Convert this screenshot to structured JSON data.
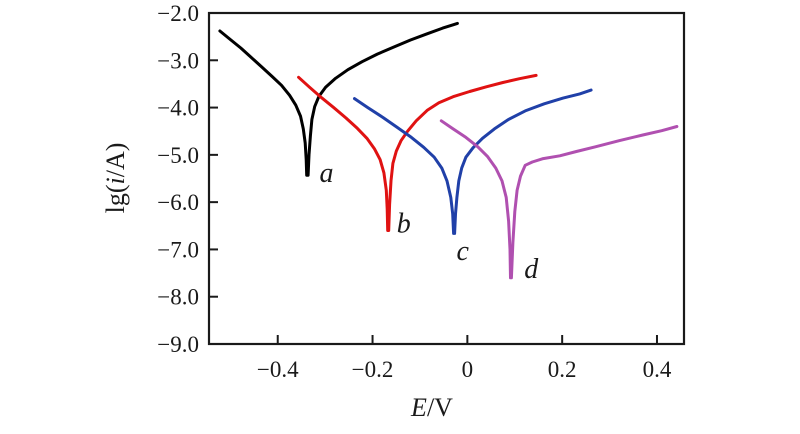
{
  "figure": {
    "background": "#ffffff",
    "frame_color": "#1a1a1a"
  },
  "chart_data": {
    "type": "line",
    "title": "",
    "xlabel_parts": [
      {
        "text": "E",
        "italic": true
      },
      {
        "text": "/V",
        "italic": false
      }
    ],
    "ylabel_parts": [
      {
        "text": "lg(",
        "italic": false
      },
      {
        "text": "i",
        "italic": true
      },
      {
        "text": "/A)",
        "italic": false
      }
    ],
    "xlim": [
      -0.545,
      0.457
    ],
    "ylim": [
      -9.0,
      -2.0
    ],
    "grid": false,
    "legend": "none",
    "xticks": [
      {
        "value": -0.4,
        "label": "−0.4"
      },
      {
        "value": -0.2,
        "label": "−0.2"
      },
      {
        "value": 0.0,
        "label": "0"
      },
      {
        "value": 0.2,
        "label": "0.2"
      },
      {
        "value": 0.4,
        "label": "0.4"
      }
    ],
    "yticks": [
      {
        "value": -2.0,
        "label": "−2.0"
      },
      {
        "value": -3.0,
        "label": "−3.0"
      },
      {
        "value": -4.0,
        "label": "−4.0"
      },
      {
        "value": -5.0,
        "label": "−5.0"
      },
      {
        "value": -6.0,
        "label": "−6.0"
      },
      {
        "value": -7.0,
        "label": "−7.0"
      },
      {
        "value": -8.0,
        "label": "−8.0"
      },
      {
        "value": -9.0,
        "label": "−9.0"
      }
    ],
    "series": [
      {
        "name": "a",
        "color": "#000000",
        "corrosion_potential_V": -0.339,
        "min_lg_i": -5.43,
        "label": "a",
        "label_pos": [
          -0.312,
          -5.57
        ],
        "points": [
          [
            -0.522,
            -2.38
          ],
          [
            -0.5,
            -2.56
          ],
          [
            -0.478,
            -2.74
          ],
          [
            -0.458,
            -2.92
          ],
          [
            -0.435,
            -3.13
          ],
          [
            -0.412,
            -3.34
          ],
          [
            -0.392,
            -3.53
          ],
          [
            -0.375,
            -3.74
          ],
          [
            -0.362,
            -3.95
          ],
          [
            -0.352,
            -4.18
          ],
          [
            -0.346,
            -4.45
          ],
          [
            -0.342,
            -4.75
          ],
          [
            -0.34,
            -5.1
          ],
          [
            -0.339,
            -5.43
          ],
          [
            -0.336,
            -5.43
          ],
          [
            -0.334,
            -5.0
          ],
          [
            -0.331,
            -4.6
          ],
          [
            -0.328,
            -4.25
          ],
          [
            -0.322,
            -3.98
          ],
          [
            -0.313,
            -3.76
          ],
          [
            -0.299,
            -3.57
          ],
          [
            -0.278,
            -3.38
          ],
          [
            -0.252,
            -3.2
          ],
          [
            -0.222,
            -3.03
          ],
          [
            -0.19,
            -2.87
          ],
          [
            -0.155,
            -2.72
          ],
          [
            -0.12,
            -2.57
          ],
          [
            -0.085,
            -2.44
          ],
          [
            -0.052,
            -2.32
          ],
          [
            -0.03,
            -2.25
          ],
          [
            -0.021,
            -2.22
          ]
        ]
      },
      {
        "name": "b",
        "color": "#e01212",
        "corrosion_potential_V": -0.168,
        "min_lg_i": -6.6,
        "label": "b",
        "label_pos": [
          -0.149,
          -6.64
        ],
        "points": [
          [
            -0.356,
            -3.36
          ],
          [
            -0.333,
            -3.57
          ],
          [
            -0.308,
            -3.79
          ],
          [
            -0.282,
            -4.0
          ],
          [
            -0.256,
            -4.22
          ],
          [
            -0.232,
            -4.44
          ],
          [
            -0.212,
            -4.65
          ],
          [
            -0.196,
            -4.87
          ],
          [
            -0.184,
            -5.1
          ],
          [
            -0.176,
            -5.38
          ],
          [
            -0.171,
            -5.75
          ],
          [
            -0.169,
            -6.15
          ],
          [
            -0.168,
            -6.6
          ],
          [
            -0.166,
            -6.6
          ],
          [
            -0.164,
            -6.05
          ],
          [
            -0.161,
            -5.55
          ],
          [
            -0.157,
            -5.18
          ],
          [
            -0.15,
            -4.92
          ],
          [
            -0.14,
            -4.7
          ],
          [
            -0.126,
            -4.5
          ],
          [
            -0.108,
            -4.28
          ],
          [
            -0.085,
            -4.06
          ],
          [
            -0.06,
            -3.9
          ],
          [
            -0.03,
            -3.77
          ],
          [
            0.005,
            -3.66
          ],
          [
            0.04,
            -3.56
          ],
          [
            0.075,
            -3.47
          ],
          [
            0.11,
            -3.39
          ],
          [
            0.145,
            -3.32
          ]
        ]
      },
      {
        "name": "c",
        "color": "#2040a8",
        "corrosion_potential_V": -0.028,
        "min_lg_i": -6.66,
        "label": "c",
        "label_pos": [
          -0.023,
          -7.22
        ],
        "points": [
          [
            -0.238,
            -3.81
          ],
          [
            -0.21,
            -4.0
          ],
          [
            -0.178,
            -4.21
          ],
          [
            -0.148,
            -4.42
          ],
          [
            -0.118,
            -4.63
          ],
          [
            -0.092,
            -4.84
          ],
          [
            -0.07,
            -5.05
          ],
          [
            -0.054,
            -5.28
          ],
          [
            -0.043,
            -5.55
          ],
          [
            -0.035,
            -5.9
          ],
          [
            -0.031,
            -6.25
          ],
          [
            -0.029,
            -6.66
          ],
          [
            -0.027,
            -6.66
          ],
          [
            -0.025,
            -6.25
          ],
          [
            -0.022,
            -5.9
          ],
          [
            -0.018,
            -5.55
          ],
          [
            -0.012,
            -5.28
          ],
          [
            -0.003,
            -5.05
          ],
          [
            0.012,
            -4.85
          ],
          [
            0.032,
            -4.65
          ],
          [
            0.057,
            -4.45
          ],
          [
            0.087,
            -4.25
          ],
          [
            0.122,
            -4.07
          ],
          [
            0.162,
            -3.92
          ],
          [
            0.202,
            -3.8
          ],
          [
            0.237,
            -3.71
          ],
          [
            0.261,
            -3.63
          ]
        ]
      },
      {
        "name": "d",
        "color": "#b050b0",
        "corrosion_potential_V": 0.091,
        "min_lg_i": -7.6,
        "label": "d",
        "label_pos": [
          0.12,
          -7.6
        ],
        "points": [
          [
            -0.055,
            -4.28
          ],
          [
            -0.03,
            -4.45
          ],
          [
            -0.003,
            -4.63
          ],
          [
            0.022,
            -4.83
          ],
          [
            0.043,
            -5.04
          ],
          [
            0.06,
            -5.28
          ],
          [
            0.073,
            -5.55
          ],
          [
            0.082,
            -5.9
          ],
          [
            0.087,
            -6.4
          ],
          [
            0.09,
            -7.0
          ],
          [
            0.091,
            -7.6
          ],
          [
            0.093,
            -7.6
          ],
          [
            0.096,
            -6.85
          ],
          [
            0.1,
            -6.2
          ],
          [
            0.105,
            -5.75
          ],
          [
            0.112,
            -5.45
          ],
          [
            0.122,
            -5.22
          ],
          [
            0.137,
            -5.15
          ],
          [
            0.16,
            -5.08
          ],
          [
            0.195,
            -5.02
          ],
          [
            0.23,
            -4.93
          ],
          [
            0.27,
            -4.83
          ],
          [
            0.32,
            -4.7
          ],
          [
            0.37,
            -4.58
          ],
          [
            0.41,
            -4.49
          ],
          [
            0.442,
            -4.4
          ]
        ]
      }
    ]
  }
}
